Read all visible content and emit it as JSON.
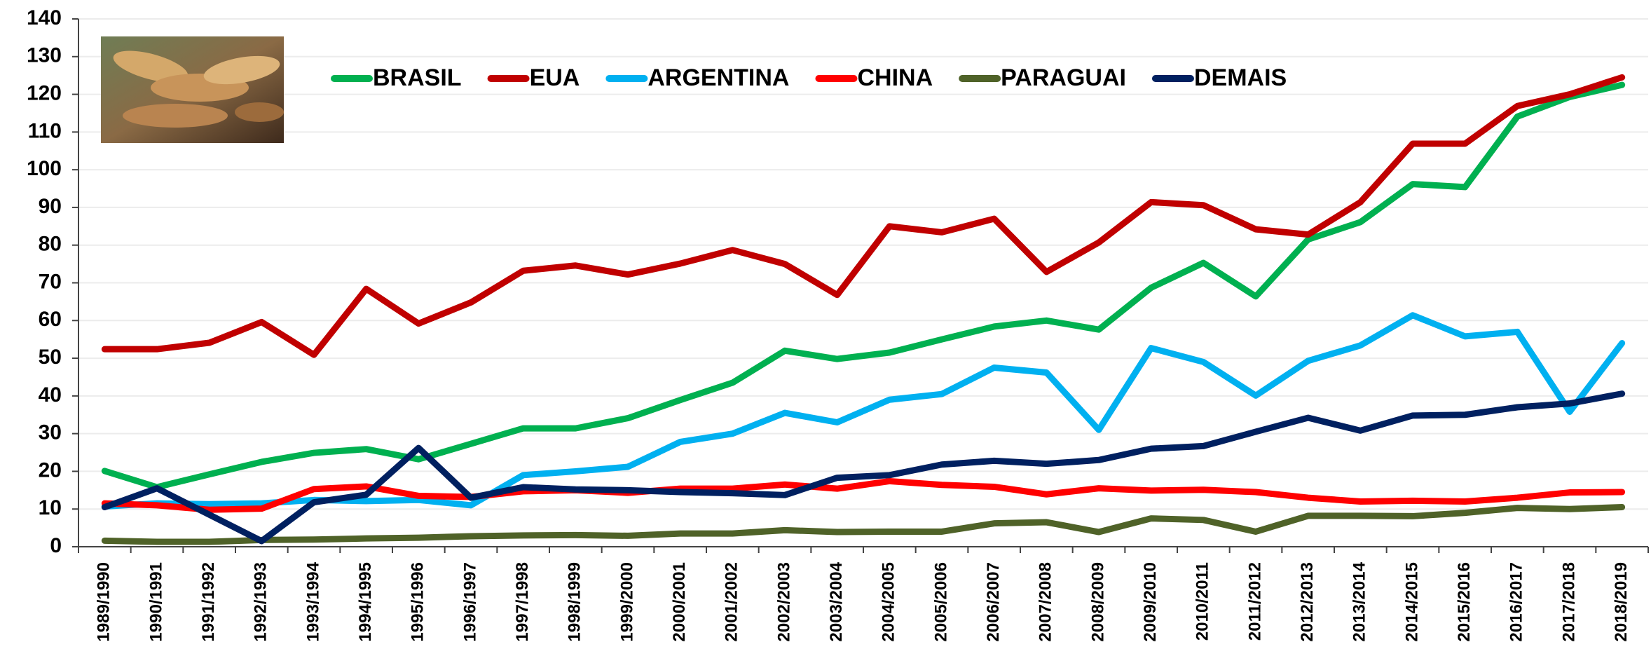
{
  "chart_data": {
    "type": "line",
    "categories": [
      "1989/1990",
      "1990/1991",
      "1991/1992",
      "1992/1993",
      "1993/1994",
      "1994/1995",
      "1995/1996",
      "1996/1997",
      "1997/1998",
      "1998/1999",
      "1999/2000",
      "2000/2001",
      "2001/2002",
      "2002/2003",
      "2003/2004",
      "2004/2005",
      "2005/2006",
      "2006/2007",
      "2007/2008",
      "2008/2009",
      "2009/2010",
      "2010/2011",
      "2011/2012",
      "2012/2013",
      "2013/2014",
      "2014/2015",
      "2015/2016",
      "2016/2017",
      "2017/2018",
      "2018/2019"
    ],
    "series": [
      {
        "name": "BRASIL",
        "color": "#00b050",
        "values": [
          20.1,
          15.8,
          19.2,
          22.5,
          24.9,
          25.9,
          23.2,
          27.3,
          31.4,
          31.4,
          34.1,
          38.9,
          43.5,
          52.0,
          49.8,
          51.5,
          55.0,
          58.4,
          60.0,
          57.6,
          68.7,
          75.3,
          66.4,
          81.5,
          86.1,
          96.2,
          95.4,
          114.1,
          119.3,
          122.5
        ]
      },
      {
        "name": "EUA",
        "color": "#c00000",
        "values": [
          52.4,
          52.4,
          54.1,
          59.6,
          50.9,
          68.4,
          59.2,
          64.8,
          73.2,
          74.6,
          72.2,
          75.1,
          78.7,
          75.0,
          66.8,
          85.0,
          83.4,
          87.0,
          72.9,
          80.7,
          91.4,
          90.6,
          84.2,
          82.8,
          91.4,
          106.9,
          106.9,
          116.9,
          120.0,
          124.5
        ]
      },
      {
        "name": "ARGENTINA",
        "color": "#00b0f0",
        "values": [
          10.7,
          11.5,
          11.3,
          11.5,
          12.4,
          12.1,
          12.4,
          11.0,
          19.0,
          20.0,
          21.2,
          27.8,
          30.0,
          35.5,
          33.0,
          39.0,
          40.5,
          47.5,
          46.2,
          31.0,
          52.7,
          49.0,
          40.1,
          49.3,
          53.4,
          61.4,
          55.8,
          57.0,
          35.8,
          54.0
        ]
      },
      {
        "name": "CHINA",
        "color": "#ff0000",
        "values": [
          11.5,
          11.0,
          9.8,
          10.1,
          15.3,
          16.0,
          13.5,
          13.2,
          14.7,
          15.0,
          14.3,
          15.4,
          15.4,
          16.5,
          15.4,
          17.4,
          16.4,
          15.9,
          13.9,
          15.5,
          14.9,
          15.1,
          14.5,
          13.0,
          12.0,
          12.2,
          12.0,
          13.0,
          14.4,
          14.5
        ]
      },
      {
        "name": "PARAGUAI",
        "color": "#4f6228",
        "values": [
          1.6,
          1.3,
          1.3,
          1.8,
          1.9,
          2.2,
          2.4,
          2.8,
          3.0,
          3.1,
          2.9,
          3.5,
          3.5,
          4.4,
          3.9,
          4.0,
          4.0,
          6.2,
          6.5,
          3.9,
          7.5,
          7.1,
          4.0,
          8.2,
          8.2,
          8.1,
          9.0,
          10.3,
          10.0,
          10.5
        ]
      },
      {
        "name": "DEMAIS",
        "color": "#002060",
        "values": [
          10.5,
          15.5,
          8.5,
          1.5,
          11.8,
          13.8,
          26.2,
          13.0,
          15.8,
          15.2,
          15.0,
          14.5,
          14.2,
          13.7,
          18.3,
          19.0,
          21.8,
          22.8,
          22.0,
          23.0,
          26.0,
          26.7,
          30.5,
          34.2,
          30.8,
          34.8,
          35.0,
          37.0,
          38.0,
          40.6
        ]
      }
    ],
    "ylim": [
      0,
      140
    ],
    "yticks": [
      0,
      10,
      20,
      30,
      40,
      50,
      60,
      70,
      80,
      90,
      100,
      110,
      120,
      130,
      140
    ],
    "grid": true,
    "legend": "top"
  }
}
